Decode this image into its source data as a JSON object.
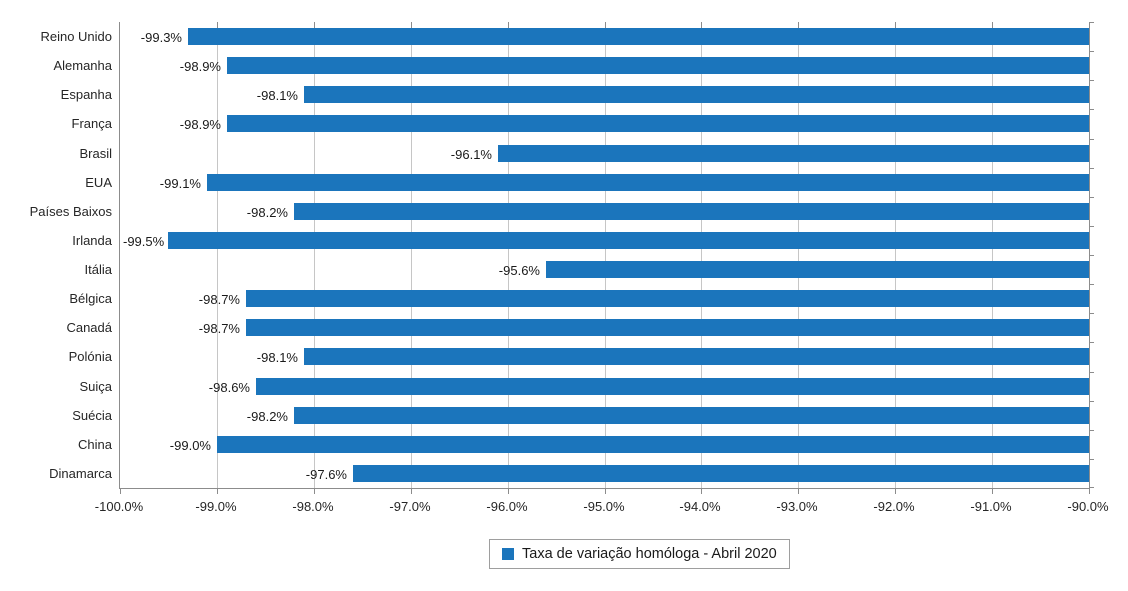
{
  "chart_data": {
    "type": "bar",
    "orientation": "horizontal",
    "title": "",
    "categories": [
      "Reino Unido",
      "Alemanha",
      "Espanha",
      "França",
      "Brasil",
      "EUA",
      "Países Baixos",
      "Irlanda",
      "Itália",
      "Bélgica",
      "Canadá",
      "Polónia",
      "Suiça",
      "Suécia",
      "China",
      "Dinamarca"
    ],
    "values": [
      -99.3,
      -98.9,
      -98.1,
      -98.9,
      -96.1,
      -99.1,
      -98.2,
      -99.5,
      -95.6,
      -98.7,
      -98.7,
      -98.1,
      -98.6,
      -98.2,
      -99.0,
      -97.6
    ],
    "data_labels": [
      "-99.3%",
      "-98.9%",
      "-98.1%",
      "-98.9%",
      "-96.1%",
      "-99.1%",
      "-98.2%",
      "-99.5%",
      "-95.6%",
      "-98.7%",
      "-98.7%",
      "-98.1%",
      "-98.6%",
      "-98.2%",
      "-99.0%",
      "-97.6%"
    ],
    "series": [
      {
        "name": "Taxa de variação homóloga - Abril 2020",
        "values": [
          -99.3,
          -98.9,
          -98.1,
          -98.9,
          -96.1,
          -99.1,
          -98.2,
          -99.5,
          -95.6,
          -98.7,
          -98.7,
          -98.1,
          -98.6,
          -98.2,
          -99.0,
          -97.6
        ]
      }
    ],
    "x_axis": {
      "min": -100,
      "max": -90,
      "tick_step": 1,
      "tick_labels": [
        "-100.0%",
        "-99.0%",
        "-98.0%",
        "-97.0%",
        "-96.0%",
        "-95.0%",
        "-94.0%",
        "-93.0%",
        "-92.0%",
        "-91.0%",
        "-90.0%"
      ]
    },
    "xlabel": "",
    "ylabel": "",
    "grid": true,
    "bars_anchored_at": -90,
    "legend": {
      "label": "Taxa de variação homóloga - Abril 2020",
      "position": "bottom"
    }
  },
  "colors": {
    "bar": "#1b75bc",
    "gridline": "#c6c6c6",
    "axis": "#8c8c8c",
    "text": "#262626",
    "background": "#ffffff"
  }
}
